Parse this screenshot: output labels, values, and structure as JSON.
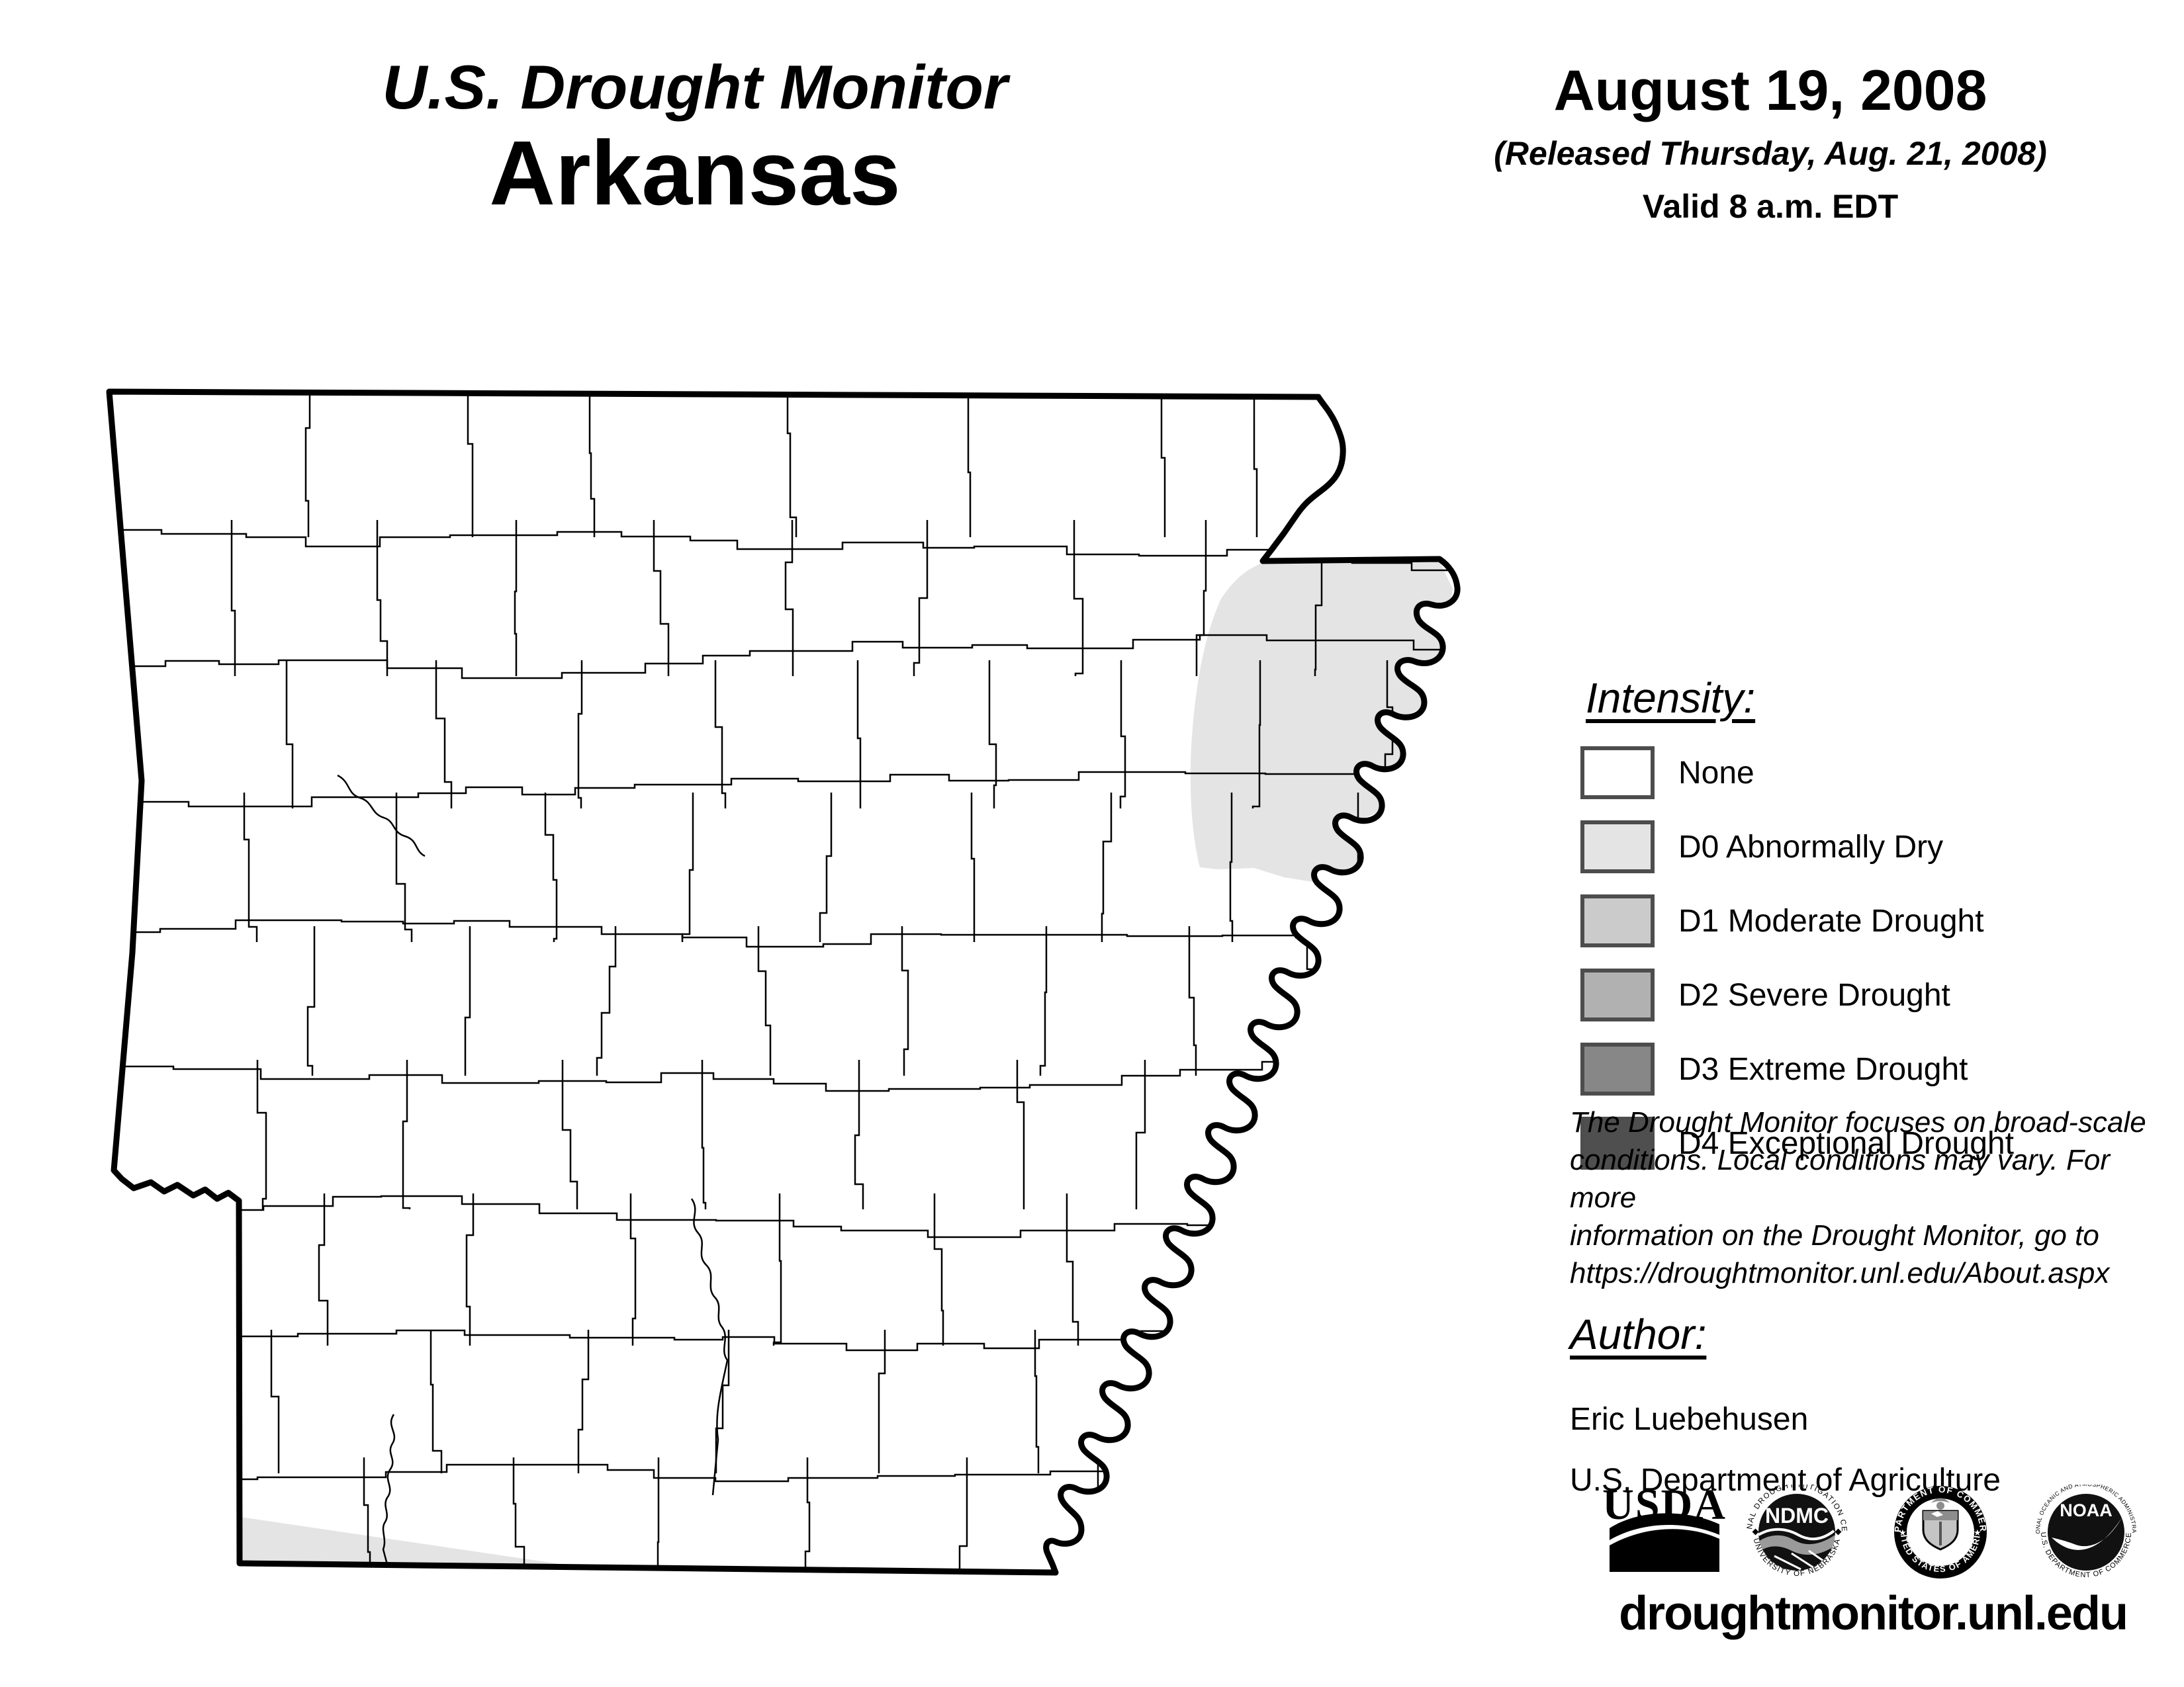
{
  "title": {
    "line1": "U.S. Drought Monitor",
    "line2": "Arkansas"
  },
  "date_block": {
    "date": "August 19, 2008",
    "released": "(Released Thursday, Aug. 21, 2008)",
    "valid": "Valid 8 a.m. EDT"
  },
  "legend": {
    "heading": "Intensity:",
    "items": [
      {
        "label": "None",
        "color": "#ffffff"
      },
      {
        "label": "D0 Abnormally Dry",
        "color": "#e4e4e4"
      },
      {
        "label": "D1 Moderate Drought",
        "color": "#cbcbcb"
      },
      {
        "label": "D2 Severe Drought",
        "color": "#b1b1b1"
      },
      {
        "label": "D3 Extreme Drought",
        "color": "#878787"
      },
      {
        "label": "D4 Exceptional Drought",
        "color": "#4f4f4f"
      }
    ]
  },
  "disclaimer_lines": [
    "The Drought Monitor focuses on broad-scale",
    "conditions. Local conditions may vary. For more",
    "information on the Drought Monitor, go to",
    "https://droughtmonitor.unl.edu/About.aspx"
  ],
  "author": {
    "heading": "Author:",
    "name": "Eric Luebehusen",
    "org": "U.S. Department of Agriculture"
  },
  "footer_url": "droughtmonitor.unl.edu",
  "logos": {
    "usda": {
      "text": "USDA"
    },
    "ndmc": {
      "center": "NDMC",
      "arc_top": "NATIONAL DROUGHT MITIGATION CENTER",
      "arc_bottom": "UNIVERSITY OF NEBRASKA"
    },
    "commerce": {
      "arc_top": "DEPARTMENT OF COMMERCE",
      "arc_bottom": "UNITED STATES OF AMERICA"
    },
    "noaa": {
      "center": "NOAA",
      "arc_top": "NATIONAL OCEANIC AND ATMOSPHERIC ADMINISTRATION",
      "arc_bottom": "U.S. DEPARTMENT OF COMMERCE"
    }
  },
  "map": {
    "state": "Arkansas",
    "border_color": "#000000",
    "county_line_color": "#000000",
    "d0_color": "#e4e4e4",
    "drought_regions": [
      {
        "level": "D0",
        "label": "D0 Abnormally Dry",
        "location": "northeast Arkansas along the Mississippi River"
      },
      {
        "level": "D0",
        "label": "D0 Abnormally Dry",
        "location": "southwest corner along the Louisiana border"
      }
    ]
  }
}
